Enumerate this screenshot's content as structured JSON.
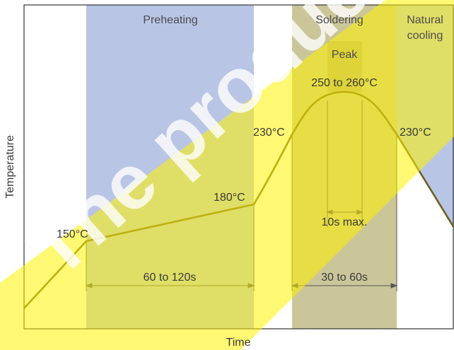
{
  "axes": {
    "x_label": "Time",
    "y_label": "Temperature"
  },
  "zones": {
    "preheating": "Preheating",
    "soldering": "Soldering",
    "natural_cooling_line1": "Natural",
    "natural_cooling_line2": "cooling",
    "peak": "Peak"
  },
  "temperatures": {
    "t150": "150°C",
    "t180": "180°C",
    "t230_left": "230°C",
    "t230_right": "230°C",
    "peak_range": "250 to 260°C"
  },
  "durations": {
    "preheat": "60 to 120s",
    "soldering": "30 to 60s",
    "peak_max": "10s max."
  },
  "watermark": "The product",
  "colors": {
    "zone_blue": "#b7c3e3",
    "zone_olive": "#c8c294",
    "curve": "#6f5f1f",
    "watermark_yellow": "#fff200"
  }
}
